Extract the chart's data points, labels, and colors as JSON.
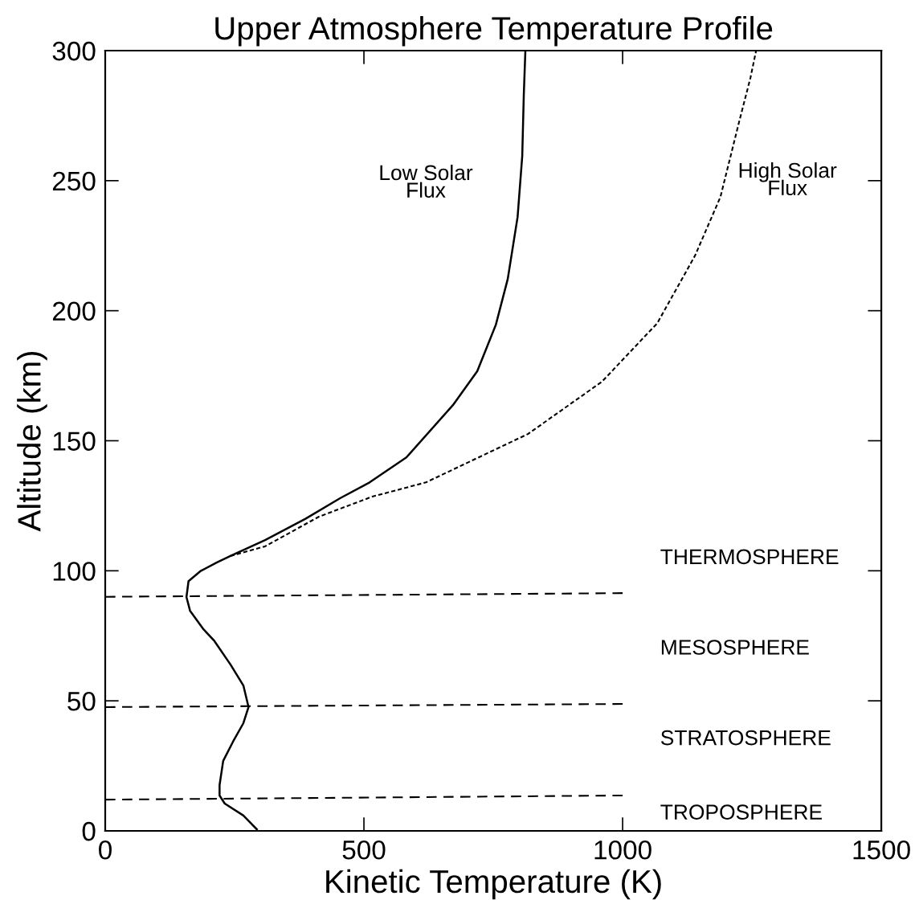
{
  "chart_data": {
    "type": "line",
    "title": "Upper Atmosphere Temperature Profile",
    "xlabel": "Kinetic Temperature (K)",
    "ylabel": "Altitude (km)",
    "xlim": [
      0,
      1500
    ],
    "ylim": [
      0,
      300
    ],
    "xticks": [
      0,
      500,
      1000,
      1500
    ],
    "yticks": [
      0,
      50,
      100,
      150,
      200,
      250,
      300
    ],
    "grid": false,
    "legend": false,
    "marker": "none",
    "series": [
      {
        "color": "#000000",
        "line_style": "solid",
        "x": [
          293,
          267,
          231,
          221,
          221,
          228,
          247,
          267,
          277,
          267,
          242,
          211,
          190,
          164,
          157,
          161,
          185,
          216,
          242,
          309,
          387,
          454,
          511,
          582,
          672,
          719,
          755,
          778,
          797,
          806,
          809,
          812
        ],
        "values": [
          0.6,
          5.9,
          10.5,
          13.6,
          17.6,
          26.9,
          34.3,
          41.4,
          47.6,
          55.9,
          64,
          73,
          77.5,
          84.6,
          89.9,
          96,
          100,
          103.2,
          105.7,
          111.8,
          120,
          127.9,
          134,
          143.6,
          163.7,
          176.7,
          194.6,
          212.2,
          236,
          259.5,
          283,
          299.7
        ]
      },
      {
        "color": "#000000",
        "line_style": "dotted",
        "x": [
          242,
          309,
          413,
          516,
          620,
          817,
          960,
          1067,
          1140,
          1189,
          1225,
          1247,
          1258
        ],
        "values": [
          105.7,
          109.4,
          120.8,
          128.5,
          134,
          152.6,
          172.7,
          195.2,
          221.2,
          243.7,
          272.5,
          289.5,
          300
        ]
      },
      {
        "color": "#000000",
        "line_style": "dashed",
        "x": [
          0,
          1000
        ],
        "values": [
          90,
          91.4
        ]
      },
      {
        "color": "#000000",
        "line_style": "dashed",
        "x": [
          0,
          1000
        ],
        "values": [
          47.6,
          48.8
        ]
      },
      {
        "color": "#000000",
        "line_style": "dashed",
        "x": [
          0,
          1000
        ],
        "values": [
          12,
          13.6
        ]
      }
    ],
    "annotations": [
      "Low Solar\nFlux",
      "High Solar\nFlux",
      "THERMOSPHERE",
      "MESOSPHERE",
      "STRATOSPHERE",
      "TROPOSPHERE"
    ]
  }
}
